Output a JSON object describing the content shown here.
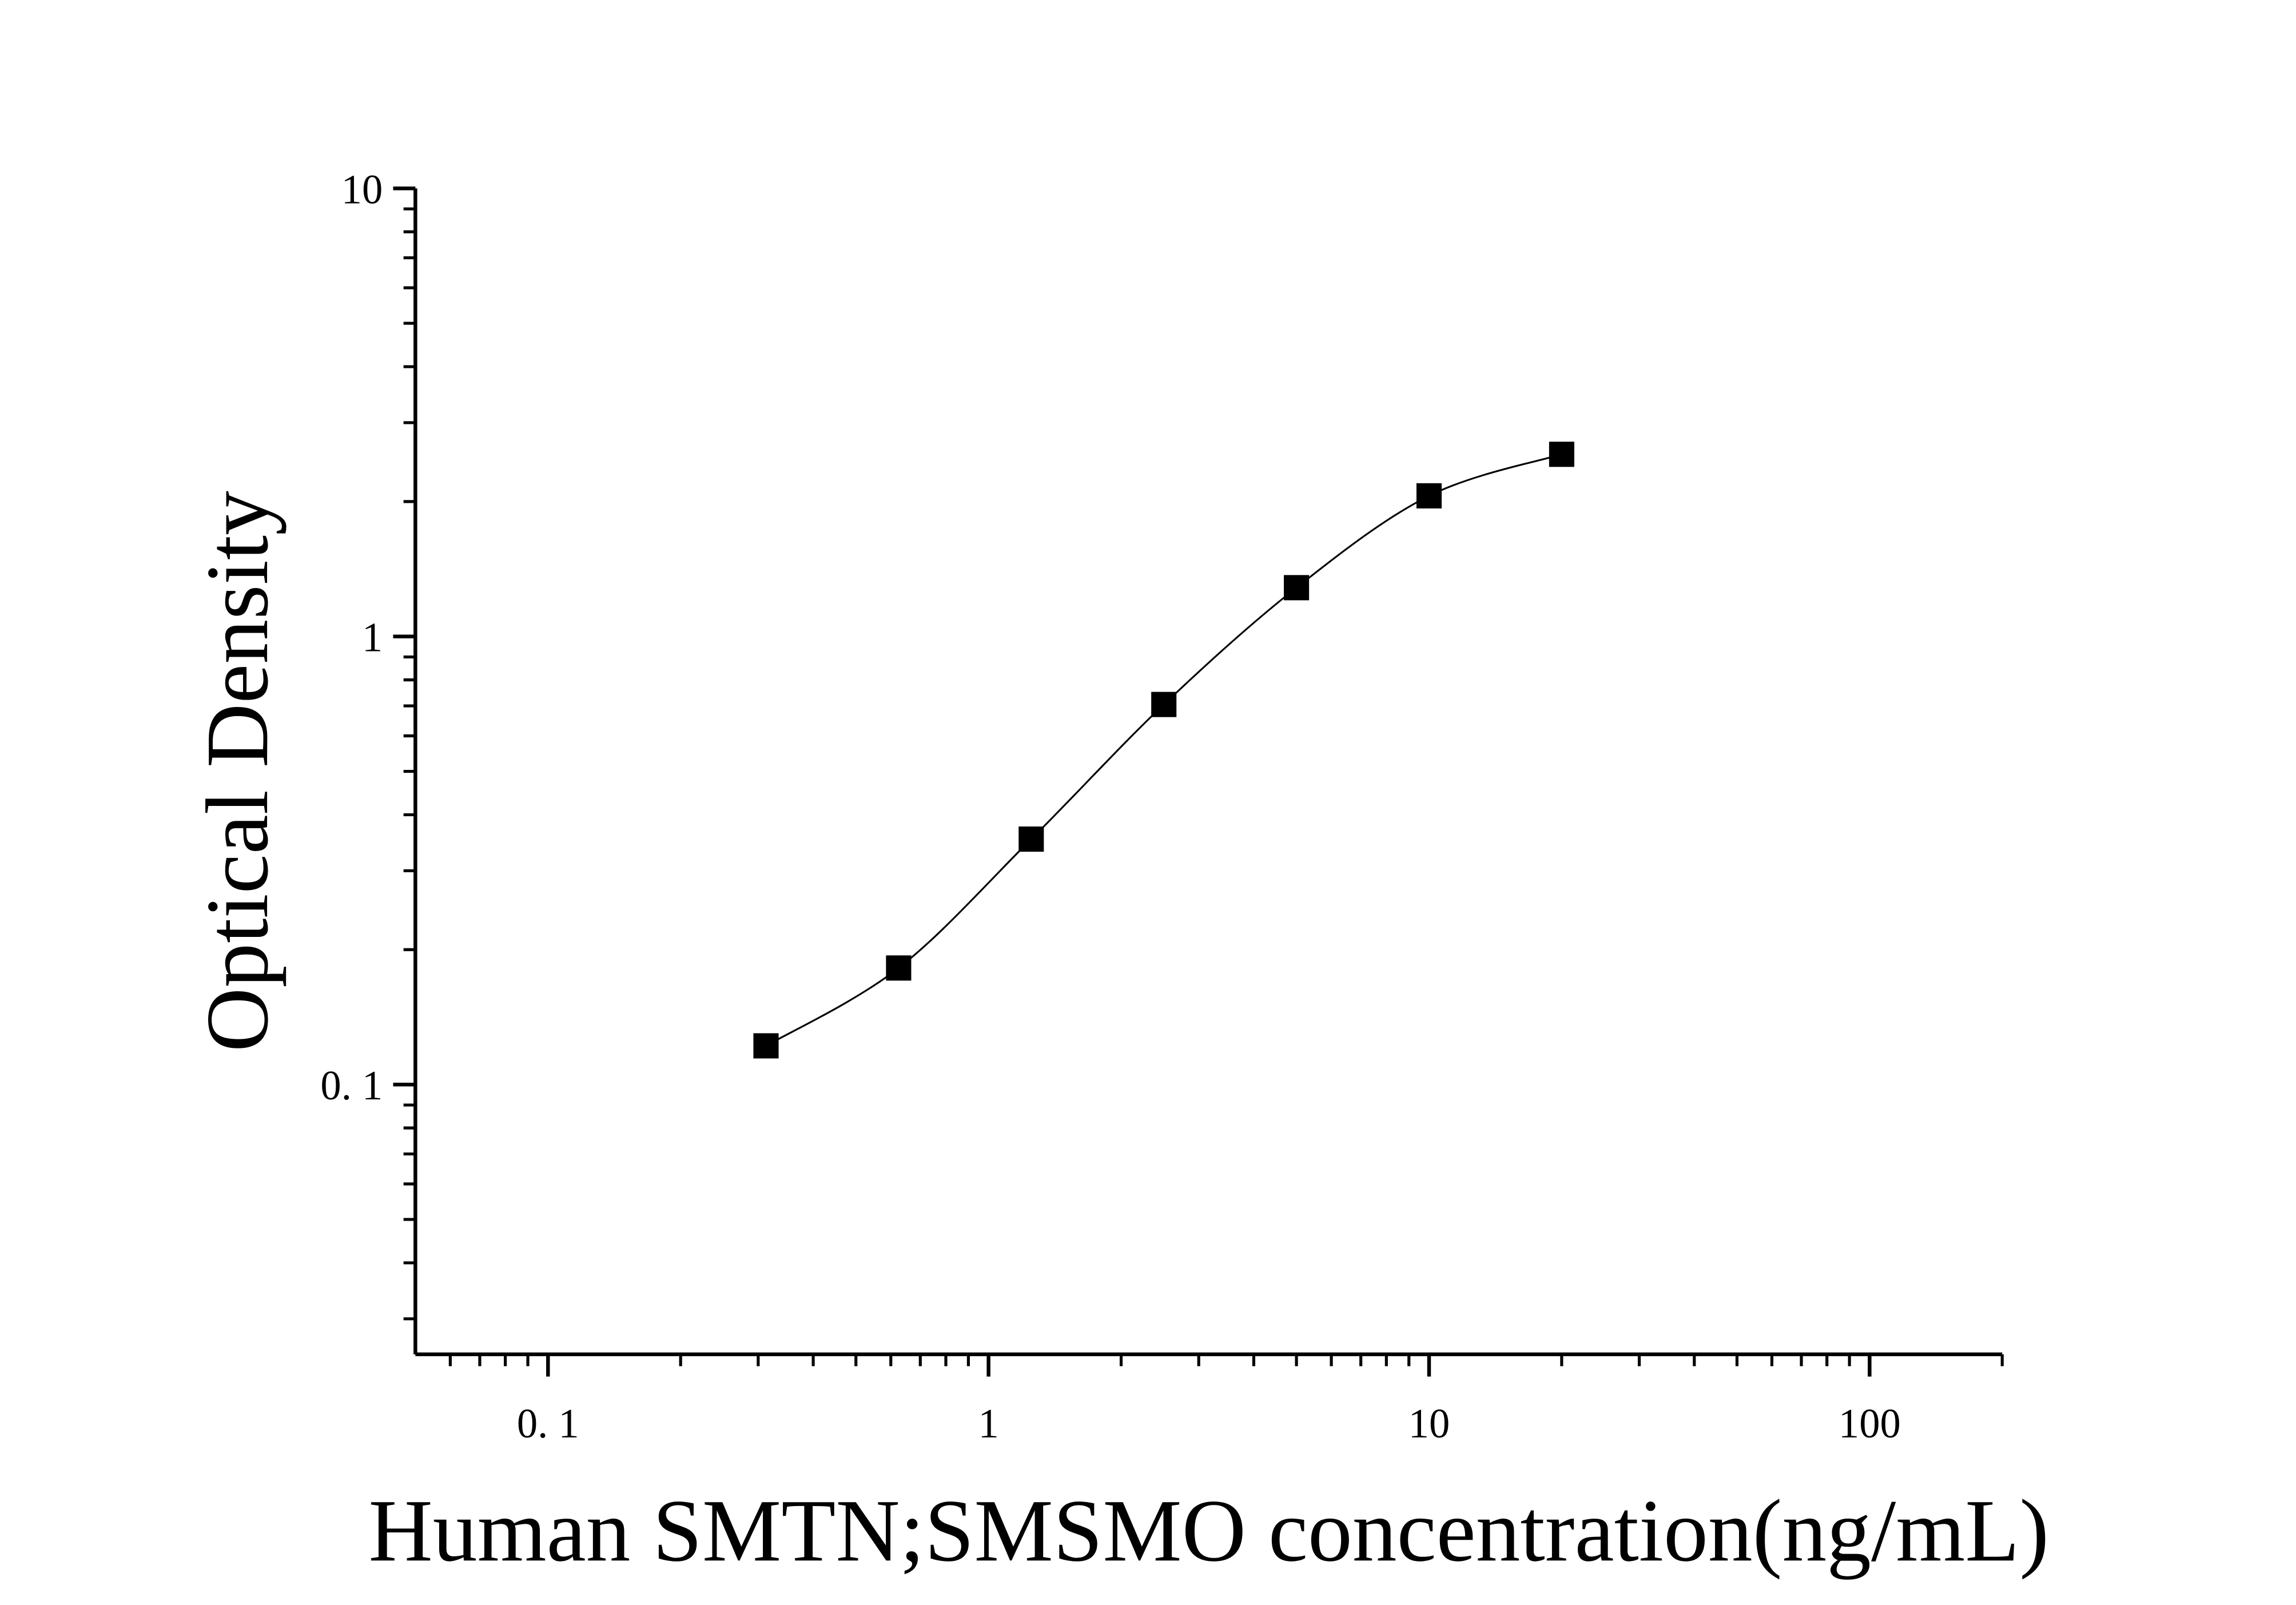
{
  "chart_data": {
    "type": "scatter",
    "x_label": "Human SMTN;SMSMO concentration(ng/mL)",
    "y_label": "Optical Density",
    "x": [
      0.3125,
      0.625,
      1.25,
      2.5,
      5,
      10,
      20
    ],
    "values": [
      0.122,
      0.182,
      0.353,
      0.705,
      1.285,
      2.06,
      2.55
    ],
    "color": "#000000",
    "fit_curve": true,
    "xscale": "log",
    "yscale": "log",
    "xlim": [
      0.05,
      200
    ],
    "ylim": [
      0.025,
      10
    ],
    "xticks": [
      {
        "value": 0.1,
        "label": "0. 1"
      },
      1,
      10,
      100
    ],
    "yticks": [
      {
        "value": 0.1,
        "label": "0. 1"
      },
      1,
      10
    ],
    "xminorticks": [
      0.06,
      0.07,
      0.08,
      0.09,
      0.2,
      0.3,
      0.4,
      0.5,
      0.6,
      0.7,
      0.8,
      0.9,
      2,
      3,
      4,
      5,
      6,
      7,
      8,
      9,
      20,
      30,
      40,
      50,
      60,
      70,
      80,
      90,
      200
    ],
    "yminorticks": [
      0.03,
      0.04,
      0.05,
      0.06,
      0.07,
      0.08,
      0.09,
      0.2,
      0.3,
      0.4,
      0.5,
      0.6,
      0.7,
      0.8,
      0.9,
      2,
      3,
      4,
      5,
      6,
      7,
      8,
      9
    ]
  }
}
